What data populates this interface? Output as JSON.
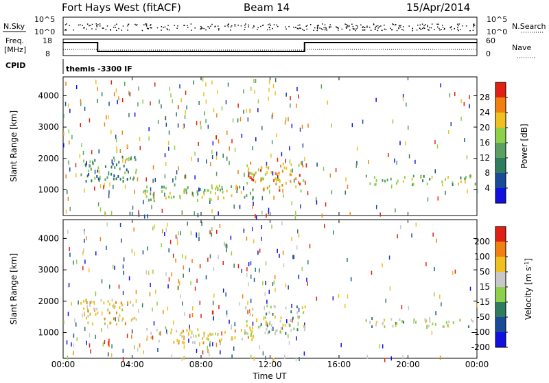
{
  "header": {
    "station": "Fort Hays West (fitACF)",
    "beam": "Beam 14",
    "date": "15/Apr/2014"
  },
  "top_panels": {
    "nsky_label": "N.Sky",
    "nsky_ticks": [
      "10^5",
      "10^0"
    ],
    "nsearch_label": "N.Search",
    "nsearch_ticks": [
      "10^5",
      "10^0"
    ],
    "freq_label_line1": "Freq.",
    "freq_label_line2": "[MHz]",
    "freq_ticks": [
      "18",
      "8"
    ],
    "nave_label": "Nave",
    "nave_ticks": [
      "60",
      "0"
    ],
    "cpid_label": "CPID",
    "cpid_text": "themis -3300 IF"
  },
  "chart_data": [
    {
      "type": "heatmap",
      "name": "power",
      "ylabel": "Slant Range [km]",
      "xlabel": "",
      "x_ticks": [
        "00:00",
        "04:00",
        "08:00",
        "12:00",
        "16:00",
        "20:00",
        "00:00"
      ],
      "x_range_hours": [
        0,
        24
      ],
      "y_ticks": [
        1000,
        2000,
        3000,
        4000
      ],
      "ylim": [
        180,
        4600
      ],
      "colorbar_label": "Power [dB]",
      "colorbar_ticks": [
        "4",
        "8",
        "12",
        "16",
        "20",
        "24",
        "28"
      ],
      "colors": [
        "#1010e0",
        "#1a4a9a",
        "#2e7d5e",
        "#5aa060",
        "#8fd04a",
        "#f0c020",
        "#f08010",
        "#e02010"
      ],
      "regions": [
        {
          "x0": 1.0,
          "x1": 4.3,
          "y0": 1300,
          "y1": 2100,
          "level": 3
        },
        {
          "x0": 4.5,
          "x1": 11.0,
          "y0": 700,
          "y1": 1200,
          "level": 4
        },
        {
          "x0": 10.5,
          "x1": 14.0,
          "y0": 1000,
          "y1": 1900,
          "level": 6
        },
        {
          "x0": 17.5,
          "x1": 24.0,
          "y0": 1200,
          "y1": 1500,
          "level": 4
        }
      ]
    },
    {
      "type": "heatmap",
      "name": "velocity",
      "ylabel": "Slant Range [km]",
      "xlabel": "Time UT",
      "x_ticks": [
        "00:00",
        "04:00",
        "08:00",
        "12:00",
        "16:00",
        "20:00",
        "00:00"
      ],
      "x_range_hours": [
        0,
        24
      ],
      "y_ticks": [
        1000,
        2000,
        3000,
        4000
      ],
      "ylim": [
        180,
        4600
      ],
      "colorbar_label": "Velocity [m s",
      "colorbar_label_sup": "-1",
      "colorbar_label_end": "]",
      "colorbar_ticks": [
        "200",
        "100",
        "50",
        "15",
        "-15",
        "-50",
        "-100",
        "-200"
      ],
      "colors": [
        "#1010e0",
        "#1a4a9a",
        "#2e7d5e",
        "#8fd04a",
        "#c8c8c8",
        "#f0c020",
        "#f08010",
        "#e02010"
      ],
      "regions": [
        {
          "x0": 1.0,
          "x1": 4.3,
          "y0": 1300,
          "y1": 2100,
          "level": 5
        },
        {
          "x0": 4.5,
          "x1": 11.0,
          "y0": 700,
          "y1": 1200,
          "level": 5
        },
        {
          "x0": 10.5,
          "x1": 14.0,
          "y0": 1000,
          "y1": 1900,
          "level": 4
        },
        {
          "x0": 17.5,
          "x1": 24.0,
          "y0": 1200,
          "y1": 1500,
          "level": 4
        }
      ]
    }
  ]
}
